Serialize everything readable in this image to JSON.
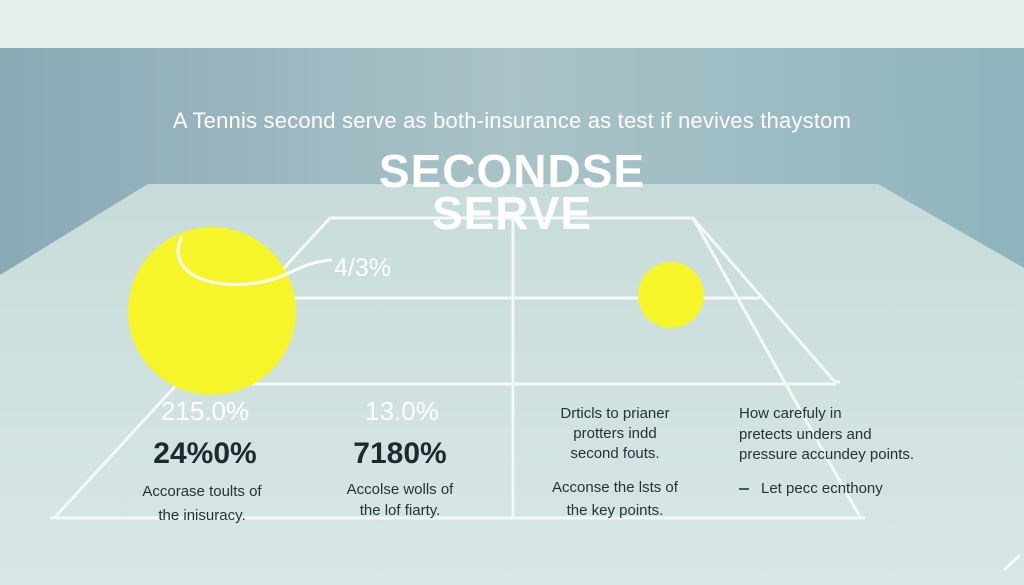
{
  "subtitle": "A Tennis second serve as both-insurance as test if nevives thaystom",
  "title": {
    "line1": "SECONDSE",
    "line2": "SERVE"
  },
  "ball_percentage": "41̶3%",
  "ball_percentage_text": "4/3%",
  "stats": [
    {
      "top": "215.0%",
      "main": "24%0%",
      "desc_line1": "Accorase toults of",
      "desc_line2": "the inisuracy."
    },
    {
      "top": "13.0%",
      "main": "7180%",
      "desc_line1": "Accolse wolls of",
      "desc_line2": "the lof fiarty."
    }
  ],
  "right_text": {
    "col1_line1": "Drticls to prianer",
    "col1_line2": "protters indd",
    "col1_line3": "second fouts.",
    "col1_line4": "Acconse the lsts of",
    "col1_line5": "the key points.",
    "col2_line1": "How carefuly in",
    "col2_line2": "pretects unders and",
    "col2_line3": "pressure accundey points.",
    "col2_line4": "Let pecc ecnthony"
  },
  "colors": {
    "ball": "#f5f52a",
    "sky": "#8fb0bc",
    "court": "#cfe0de",
    "line": "#ffffff",
    "text_dark": "#1f2a2e"
  }
}
